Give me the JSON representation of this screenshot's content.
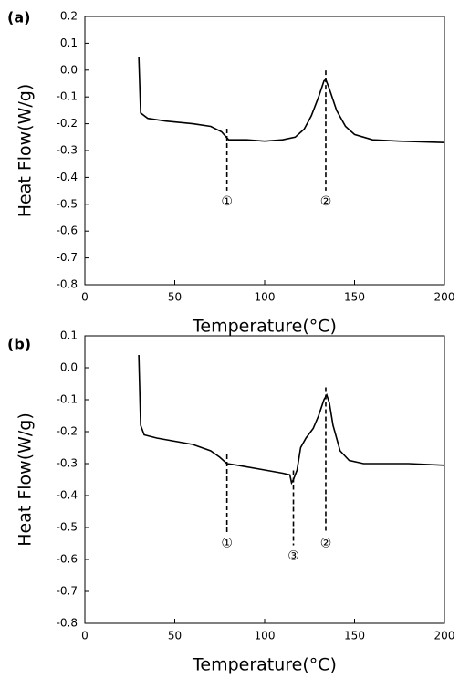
{
  "chart_data": [
    {
      "type": "line",
      "panel_label": "(a)",
      "xlabel": "Temperature(°C)",
      "ylabel": "Heat Flow(W/g)",
      "xlim": [
        0,
        200
      ],
      "xticks": [
        0,
        50,
        100,
        150,
        200
      ],
      "ylim": [
        -0.8,
        0.2
      ],
      "yticks": [
        0.2,
        0.1,
        {
          "value": 0,
          "label": "0.0"
        },
        -0.1,
        -0.2,
        -0.3,
        -0.4,
        -0.5,
        -0.6,
        -0.7,
        -0.8
      ],
      "color": "#000000",
      "x": [
        30,
        31,
        35,
        45,
        60,
        70,
        76,
        80,
        90,
        100,
        110,
        117,
        122,
        126,
        130,
        133,
        134,
        136,
        140,
        145,
        150,
        160,
        175,
        200
      ],
      "values": [
        0.05,
        -0.16,
        -0.18,
        -0.19,
        -0.2,
        -0.21,
        -0.23,
        -0.26,
        -0.26,
        -0.265,
        -0.26,
        -0.25,
        -0.22,
        -0.17,
        -0.1,
        -0.04,
        -0.035,
        -0.07,
        -0.15,
        -0.21,
        -0.24,
        -0.26,
        -0.265,
        -0.27
      ],
      "annotations": [
        {
          "label": "①",
          "x": 79,
          "y": -0.49
        },
        {
          "label": "②",
          "x": 134,
          "y": -0.49
        }
      ]
    },
    {
      "type": "line",
      "panel_label": "(b)",
      "xlabel": "Temperature(°C)",
      "ylabel": "Heat Flow(W/g)",
      "xlim": [
        0,
        200
      ],
      "xticks": [
        0,
        50,
        100,
        150,
        200
      ],
      "ylim": [
        -0.8,
        0.1
      ],
      "yticks": [
        0.1,
        {
          "value": 0,
          "label": "0.0"
        },
        -0.1,
        -0.2,
        -0.3,
        -0.4,
        -0.5,
        -0.6,
        -0.7,
        -0.8
      ],
      "color": "#000000",
      "x": [
        30,
        31,
        33,
        40,
        60,
        70,
        75,
        79,
        85,
        100,
        110,
        114,
        115,
        116,
        118,
        120,
        123,
        127,
        130,
        133,
        134.5,
        136,
        138,
        142,
        147,
        155,
        180,
        200
      ],
      "values": [
        0.04,
        -0.18,
        -0.21,
        -0.22,
        -0.24,
        -0.26,
        -0.28,
        -0.3,
        -0.305,
        -0.32,
        -0.33,
        -0.335,
        -0.36,
        -0.35,
        -0.32,
        -0.25,
        -0.22,
        -0.19,
        -0.15,
        -0.1,
        -0.085,
        -0.11,
        -0.18,
        -0.26,
        -0.29,
        -0.3,
        -0.3,
        -0.305
      ],
      "annotations": [
        {
          "label": "①",
          "x": 79,
          "y": -0.55
        },
        {
          "label": "③",
          "x": 116,
          "y": -0.59
        },
        {
          "label": "②",
          "x": 134,
          "y": -0.55
        }
      ]
    }
  ]
}
